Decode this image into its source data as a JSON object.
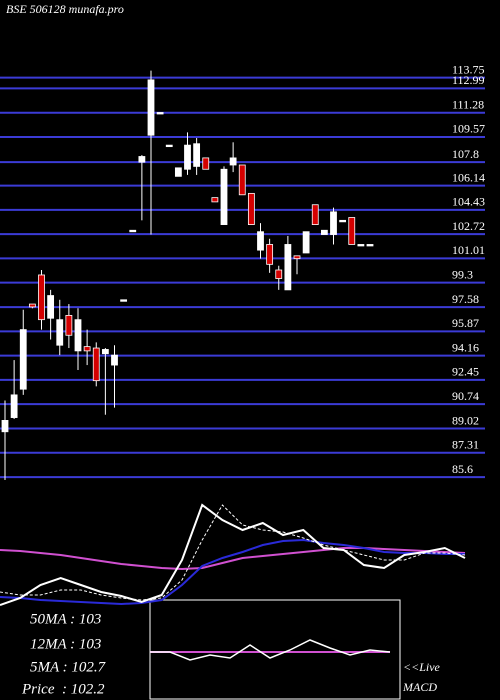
{
  "chart_data": {
    "type": "candlestick",
    "title": "BSE 506128 munafa.pro",
    "ylim": [
      84.9,
      114.5
    ],
    "yticks": [
      113.75,
      112.99,
      111.28,
      109.57,
      107.8,
      106.14,
      104.43,
      102.72,
      101.01,
      99.3,
      97.58,
      95.87,
      94.16,
      92.45,
      90.74,
      89.02,
      87.31,
      85.6
    ],
    "grid_color": "#3b3bd6",
    "up_color": "#ffffff",
    "down_color": "#d40000",
    "open": [
      88.3,
      89.3,
      91.3,
      97.3,
      99.35,
      96.3,
      94.4,
      96.5,
      94.0,
      94.3,
      94.2,
      93.8,
      93.0,
      97.6,
      102.5,
      107.3,
      109.2,
      110.8,
      108.5,
      106.3,
      106.8,
      107.0,
      107.6,
      104.8,
      102.9,
      107.1,
      107.1,
      105.1,
      101.1,
      101.5,
      99.7,
      98.3,
      100.7,
      100.9,
      104.3,
      102.2,
      102.2,
      103.2,
      103.4,
      101.5,
      101.5
    ],
    "high": [
      90.5,
      93.35,
      96.9,
      97.3,
      99.7,
      98.3,
      97.6,
      97.3,
      97.0,
      95.5,
      94.6,
      94.2,
      94.4,
      97.6,
      102.5,
      107.8,
      113.75,
      110.8,
      108.5,
      106.9,
      109.4,
      109.0,
      107.6,
      104.8,
      107.0,
      108.7,
      107.1,
      105.1,
      103.0,
      101.9,
      100.0,
      102.1,
      100.7,
      102.4,
      104.3,
      102.5,
      104.1,
      103.2,
      103.4,
      101.5,
      101.5
    ],
    "low": [
      84.9,
      89.2,
      90.9,
      97.0,
      95.5,
      94.8,
      93.7,
      94.2,
      92.65,
      93.0,
      91.5,
      89.5,
      90.0,
      97.6,
      102.5,
      103.2,
      102.2,
      110.8,
      108.5,
      106.3,
      106.4,
      106.4,
      106.8,
      104.5,
      102.9,
      106.6,
      105.0,
      102.9,
      100.5,
      99.5,
      98.3,
      98.3,
      99.4,
      100.9,
      102.9,
      102.2,
      101.5,
      103.2,
      101.5,
      101.5,
      101.5
    ],
    "close": [
      89.1,
      90.9,
      95.5,
      97.1,
      96.2,
      97.9,
      96.2,
      95.1,
      96.2,
      94.0,
      91.9,
      94.1,
      93.7,
      97.6,
      102.5,
      107.7,
      113.1,
      110.8,
      108.5,
      106.9,
      108.5,
      108.6,
      106.8,
      104.5,
      106.8,
      107.6,
      105.0,
      102.9,
      102.4,
      100.1,
      99.1,
      101.5,
      100.5,
      102.4,
      102.9,
      102.5,
      103.8,
      103.2,
      101.5,
      101.5,
      101.5
    ],
    "indicator": {
      "ylim": [
        0,
        105
      ],
      "series": [
        {
          "color": "#d050d0",
          "values": [
            55,
            54,
            52,
            50,
            47,
            44,
            41,
            39,
            37,
            36,
            37,
            42,
            47,
            49,
            51,
            53,
            55,
            57,
            57,
            56,
            55,
            54,
            53,
            52
          ]
        },
        {
          "color": "#2a2ad8",
          "values": [
            8,
            7,
            5,
            4,
            3,
            2,
            1,
            2,
            5,
            20,
            39,
            47,
            53,
            60,
            64,
            65,
            62,
            60,
            57,
            53,
            52,
            52,
            51,
            51
          ]
        },
        {
          "color": "#ffffff",
          "dashed": true,
          "values": [
            13,
            10,
            10,
            15,
            15,
            10,
            7,
            5,
            7,
            25,
            65,
            100,
            80,
            75,
            73,
            67,
            60,
            55,
            50,
            45,
            45,
            52,
            52,
            50
          ]
        },
        {
          "color": "#ffffff",
          "values": [
            0,
            7,
            20,
            27,
            20,
            13,
            9,
            3,
            10,
            45,
            100,
            85,
            75,
            82,
            70,
            75,
            57,
            55,
            40,
            37,
            50,
            53,
            57,
            47
          ]
        }
      ]
    },
    "macd": {
      "label": "MACD",
      "ylim": [
        -20,
        20
      ],
      "series": [
        {
          "color": "#d050d0",
          "values": [
            0,
            0,
            0,
            0,
            0,
            0,
            0,
            0,
            0,
            0,
            0,
            0,
            0
          ]
        },
        {
          "color": "#ffffff",
          "values": [
            0,
            0,
            -8,
            -3,
            -6,
            7,
            -6,
            2,
            12,
            4,
            -3,
            2,
            0
          ]
        }
      ]
    },
    "notes": [
      "50MA : 103",
      "12MA : 103",
      "5MA : 102.7",
      "Price  : 102.2",
      "<<Live"
    ]
  }
}
